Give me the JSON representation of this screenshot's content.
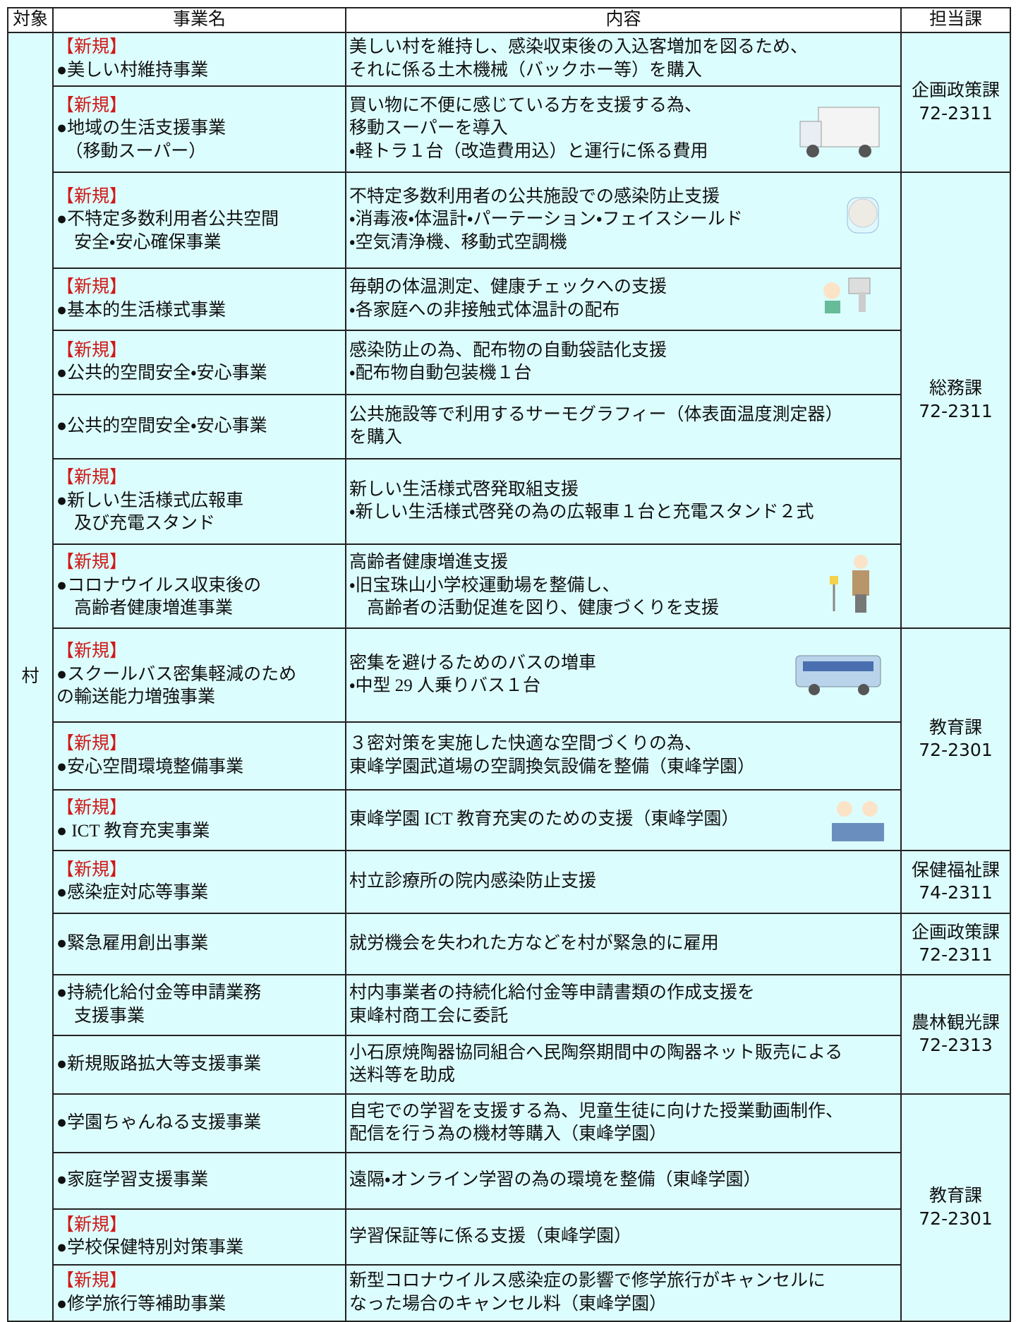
{
  "header": {
    "target": "対象",
    "name": "事業名",
    "content": "内容",
    "dept": "担当課"
  },
  "target": "村",
  "rows": [
    {
      "tag": "【新規】",
      "name": "●美しい村維持事業",
      "content": "美しい村を維持し、感染収束後の入込客増加を図るため、\nそれに係る土木機械（バックホー等）を購入",
      "dept": "企画政策課\n72-2311"
    },
    {
      "tag": "【新規】",
      "name": "●地域の生活支援事業\n　（移動スーパー）",
      "content": "買い物に不便に感じている方を支援する為、\n移動スーパーを導入\n・軽トラ１台（改造費用込）と運行に係る費用"
    },
    {
      "tag": "【新規】",
      "name": "●不特定多数利用者公共空間\n　安全・安心確保事業",
      "content": "不特定多数利用者の公共施設での感染防止支援\n・消毒液・体温計・パーテーション・フェイスシールド\n・空気清浄機、移動式空調機",
      "dept": "総務課\n72-2311"
    },
    {
      "tag": "【新規】",
      "name": "●基本的生活様式事業",
      "content": "毎朝の体温測定、健康チェックへの支援\n・各家庭への非接触式体温計の配布"
    },
    {
      "tag": "【新規】",
      "name": "●公共的空間安全・安心事業",
      "content": "感染防止の為、配布物の自動袋詰化支援\n・配布物自動包装機１台"
    },
    {
      "name": "●公共的空間安全・安心事業",
      "content": "公共施設等で利用するサーモグラフィー（体表面温度測定器）\nを購入"
    },
    {
      "tag": "【新規】",
      "name": "●新しい生活様式広報車\n　及び充電スタンド",
      "content": "新しい生活様式啓発取組支援\n・新しい生活様式啓発の為の広報車１台と充電スタンド２式"
    },
    {
      "tag": "【新規】",
      "name": "●コロナウイルス収束後の\n　高齢者健康増進事業",
      "content": "高齢者健康増進支援\n・旧宝珠山小学校運動場を整備し、\n　高齢者の活動促進を図り、健康づくりを支援"
    },
    {
      "tag": "【新規】",
      "name": "●スクールバス密集軽減のため\nの輸送能力増強事業",
      "content": "密集を避けるためのバスの増車\n・中型 29 人乗りバス１台",
      "dept": "教育課\n72-2301"
    },
    {
      "tag": "【新規】",
      "name": "●安心空間環境整備事業",
      "content": "３密対策を実施した快適な空間づくりの為、\n東峰学園武道場の空調換気設備を整備（東峰学園）"
    },
    {
      "tag": "【新規】",
      "name": "● ICT 教育充実事業",
      "content": "東峰学園 ICT 教育充実のための支援（東峰学園）"
    },
    {
      "tag": "【新規】",
      "name": "●感染症対応等事業",
      "content": "村立診療所の院内感染防止支援",
      "dept": "保健福祉課\n74-2311"
    },
    {
      "name": "●緊急雇用創出事業",
      "content": "就労機会を失われた方などを村が緊急的に雇用",
      "dept": "企画政策課\n72-2311"
    },
    {
      "name": "●持続化給付金等申請業務\n　支援事業",
      "content": "村内事業者の持続化給付金等申請書類の作成支援を\n東峰村商工会に委託",
      "dept": "農林観光課\n72-2313"
    },
    {
      "name": "●新規販路拡大等支援事業",
      "content": "小石原焼陶器協同組合へ民陶祭期間中の陶器ネット販売による\n送料等を助成"
    },
    {
      "name": "●学園ちゃんねる支援事業",
      "content": "自宅での学習を支援する為、児童生徒に向けた授業動画制作、\n配信を行う為の機材等購入（東峰学園）",
      "dept": "教育課\n72-2301"
    },
    {
      "name": "●家庭学習支援事業",
      "content": "遠隔・オンライン学習の為の環境を整備（東峰学園）"
    },
    {
      "tag": "【新規】",
      "name": "●学校保健特別対策事業",
      "content": "学習保証等に係る支援（東峰学園）"
    },
    {
      "tag": "【新規】",
      "name": "●修学旅行等補助事業",
      "content": "新型コロナウイルス感染症の影響で修学旅行がキャンセルに\nなった場合のキャンセル料（東峰学園）"
    }
  ]
}
